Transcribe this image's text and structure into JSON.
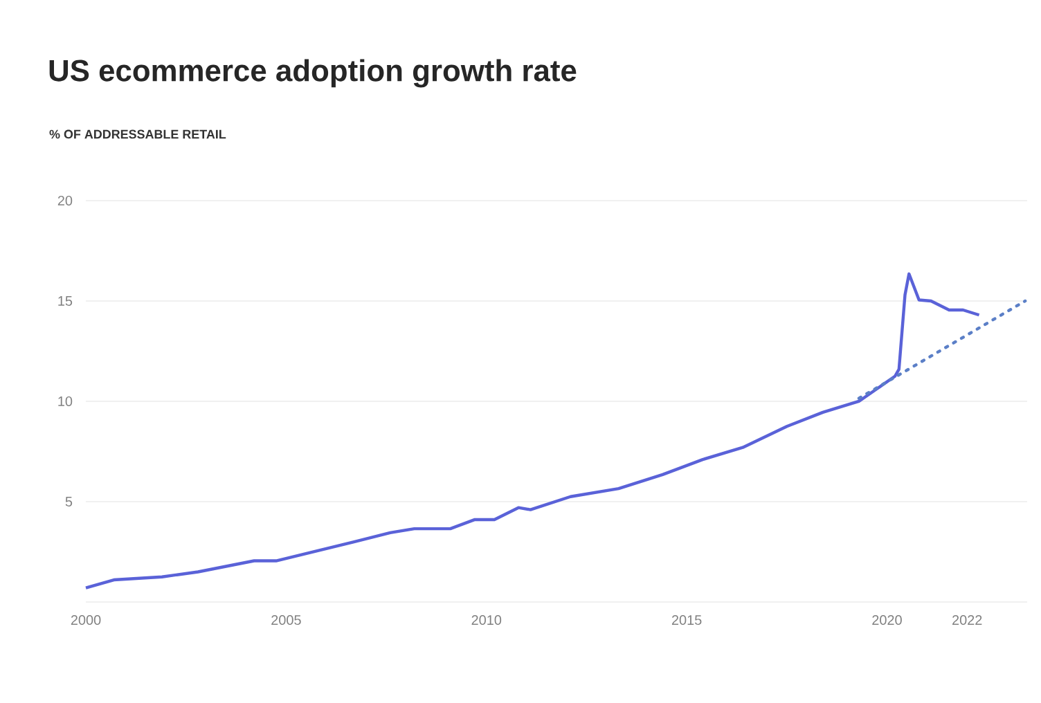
{
  "chart_data": {
    "type": "line",
    "title": "US ecommerce adoption growth rate",
    "subtitle": "% OF ADDRESSABLE RETAIL",
    "xlim": [
      2000,
      2023.5
    ],
    "xticks": [
      2000,
      2005,
      2010,
      2015,
      2020,
      2022
    ],
    "ylim": [
      0,
      20
    ],
    "yticks": [
      {
        "value": 0,
        "label": null
      },
      5,
      10,
      15,
      20
    ],
    "grid": "y",
    "series": [
      {
        "color": "#5a62d8",
        "line_style": "solid",
        "x": [
          2000,
          2000.7,
          2001.9,
          2002.8,
          2004.2,
          2004.75,
          2006.5,
          2007.6,
          2008.2,
          2009.1,
          2009.7,
          2010.2,
          2010.8,
          2011.1,
          2012.1,
          2013.3,
          2014.4,
          2015.4,
          2016.4,
          2017.5,
          2018.4,
          2019.3,
          2020.2,
          2020.3,
          2020.45,
          2020.55,
          2020.8,
          2021.1,
          2021.55,
          2021.9,
          2022.3
        ],
        "values": [
          0.7,
          1.1,
          1.25,
          1.5,
          2.05,
          2.05,
          2.9,
          3.45,
          3.65,
          3.65,
          4.1,
          4.1,
          4.7,
          4.6,
          5.25,
          5.65,
          6.35,
          7.1,
          7.7,
          8.75,
          9.45,
          10.0,
          11.25,
          11.6,
          15.3,
          16.35,
          15.05,
          15.0,
          14.55,
          14.55,
          14.3
        ]
      },
      {
        "type": "line",
        "color": "#5b7fc7",
        "line_style": "dotted",
        "x": [
          2019.3,
          2023.45
        ],
        "values": [
          10.15,
          15.0
        ]
      }
    ]
  }
}
